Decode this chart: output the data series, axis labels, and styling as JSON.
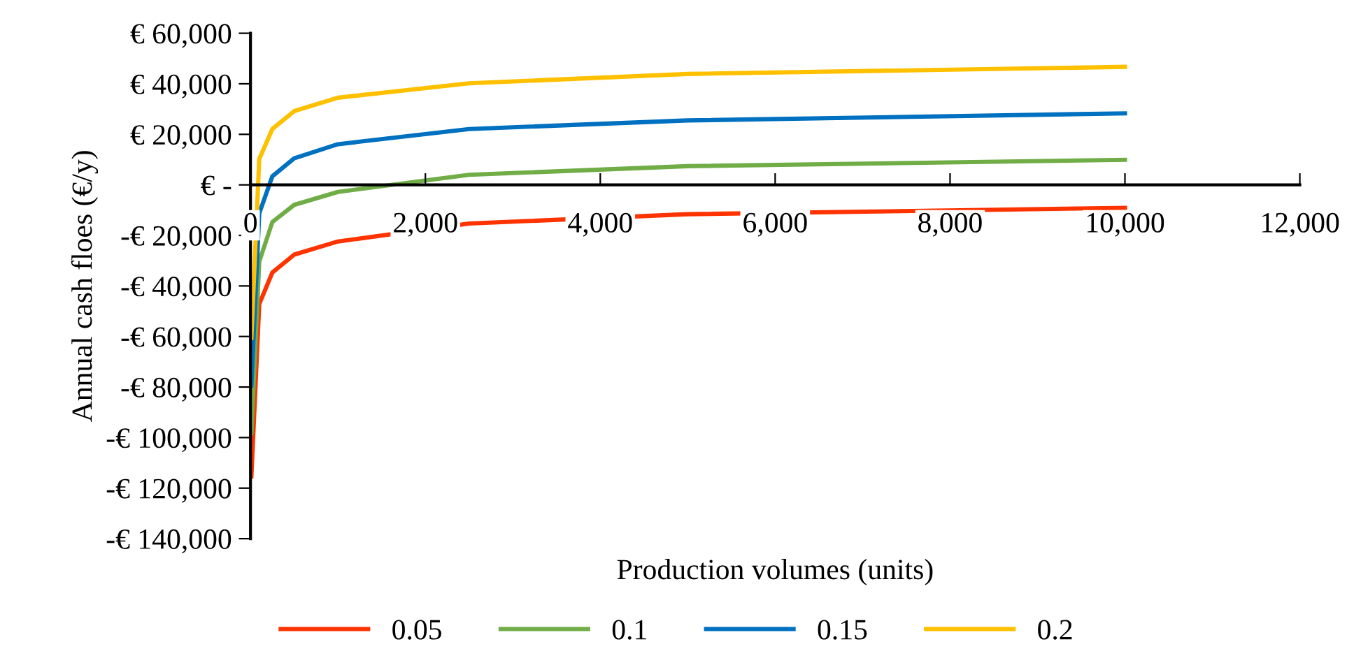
{
  "chart_data": {
    "type": "line",
    "xlabel": "Production volumes (units)",
    "ylabel": "Annual cash floes (€/y)",
    "x": [
      10,
      100,
      250,
      500,
      1000,
      2500,
      5000,
      10000
    ],
    "series": [
      {
        "name": "0.05",
        "color": "#ff3300",
        "values": [
          -115400,
          -47200,
          -34700,
          -27600,
          -22400,
          -15300,
          -11600,
          -9100
        ]
      },
      {
        "name": "0.1",
        "color": "#70ad47",
        "values": [
          -98300,
          -30400,
          -14700,
          -7900,
          -2800,
          4000,
          7400,
          9900
        ]
      },
      {
        "name": "0.15",
        "color": "#0070c0",
        "values": [
          -79400,
          -11300,
          3400,
          10500,
          16100,
          22100,
          25500,
          28300
        ]
      },
      {
        "name": "0.2",
        "color": "#ffc000",
        "values": [
          -60600,
          10200,
          22100,
          29200,
          34500,
          40200,
          43900,
          46700
        ]
      }
    ],
    "xlim": [
      0,
      12000
    ],
    "xticks": [
      0,
      {
        "value": 2000,
        "label": "2,000"
      },
      {
        "value": 4000,
        "label": "4,000"
      },
      {
        "value": 6000,
        "label": "6,000"
      },
      {
        "value": 8000,
        "label": "8,000"
      },
      {
        "value": 10000,
        "label": "10,000"
      },
      {
        "value": 12000,
        "label": "12,000"
      }
    ],
    "ylim": [
      -140000,
      60000
    ],
    "yticks": [
      {
        "value": -140000,
        "label": "-€ 140,000"
      },
      {
        "value": -120000,
        "label": "-€ 120,000"
      },
      {
        "value": -100000,
        "label": "-€ 100,000"
      },
      {
        "value": -80000,
        "label": "-€ 80,000"
      },
      {
        "value": -60000,
        "label": "-€ 60,000"
      },
      {
        "value": -40000,
        "label": "-€ 40,000"
      },
      {
        "value": -20000,
        "label": "-€ 20,000"
      },
      {
        "value": 0,
        "label": "€ -"
      },
      {
        "value": 20000,
        "label": "€ 20,000"
      },
      {
        "value": 40000,
        "label": "€ 40,000"
      },
      {
        "value": 60000,
        "label": "€ 60,000"
      }
    ],
    "grid": false,
    "legend": "bottom",
    "marker": "none",
    "line_style": "solid"
  }
}
